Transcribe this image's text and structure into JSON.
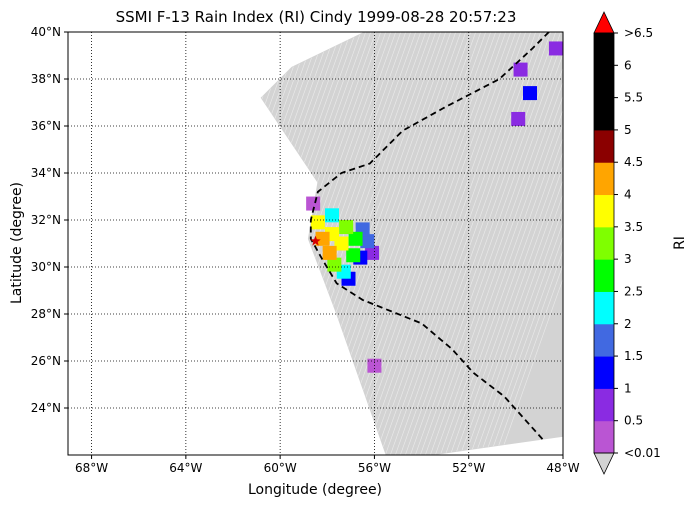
{
  "chart_data": {
    "type": "heatmap",
    "title": "SSMI F-13 Rain Index (RI) Cindy 1999-08-28 20:57:23",
    "xlabel": "Longitude (degree)",
    "ylabel": "Latitude (degree)",
    "xlim": [
      -69,
      -48
    ],
    "ylim": [
      22,
      40
    ],
    "x_ticks": [
      {
        "value": -68,
        "label": "68°W"
      },
      {
        "value": -64,
        "label": "64°W"
      },
      {
        "value": -60,
        "label": "60°W"
      },
      {
        "value": -56,
        "label": "56°W"
      },
      {
        "value": -52,
        "label": "52°W"
      },
      {
        "value": -48,
        "label": "48°W"
      }
    ],
    "y_ticks": [
      {
        "value": 24,
        "label": "24°N"
      },
      {
        "value": 26,
        "label": "26°N"
      },
      {
        "value": 28,
        "label": "28°N"
      },
      {
        "value": 30,
        "label": "30°N"
      },
      {
        "value": 32,
        "label": "32°N"
      },
      {
        "value": 34,
        "label": "34°N"
      },
      {
        "value": 36,
        "label": "36°N"
      },
      {
        "value": 38,
        "label": "38°N"
      },
      {
        "value": 40,
        "label": "40°N"
      }
    ],
    "grid": true,
    "swath_color": "#d3d3d3",
    "swath_boundary": [
      [
        -56.4,
        40
      ],
      [
        -48,
        40
      ],
      [
        -48,
        22.8
      ],
      [
        -53.6,
        22
      ],
      [
        -55.5,
        22
      ],
      [
        -57.6,
        28
      ],
      [
        -58.8,
        31.2
      ],
      [
        -58.4,
        33.6
      ],
      [
        -60.8,
        37.2
      ],
      [
        -59.5,
        38.5
      ]
    ],
    "rain_cells": [
      {
        "lon": -58.2,
        "lat": 31.2,
        "ri": 4
      },
      {
        "lon": -57.9,
        "lat": 30.6,
        "ri": 4
      },
      {
        "lon": -57.8,
        "lat": 31.4,
        "ri": 3.8
      },
      {
        "lon": -57.4,
        "lat": 31.0,
        "ri": 3.5
      },
      {
        "lon": -58.4,
        "lat": 31.9,
        "ri": 3.5
      },
      {
        "lon": -57.2,
        "lat": 31.7,
        "ri": 3.2
      },
      {
        "lon": -57.7,
        "lat": 30.1,
        "ri": 3.2
      },
      {
        "lon": -56.8,
        "lat": 31.2,
        "ri": 2.8
      },
      {
        "lon": -56.9,
        "lat": 30.5,
        "ri": 2.5
      },
      {
        "lon": -57.3,
        "lat": 29.8,
        "ri": 2.4
      },
      {
        "lon": -57.8,
        "lat": 32.2,
        "ri": 2.2
      },
      {
        "lon": -56.5,
        "lat": 31.6,
        "ri": 1.8
      },
      {
        "lon": -56.3,
        "lat": 31.1,
        "ri": 1.6
      },
      {
        "lon": -56.6,
        "lat": 30.4,
        "ri": 1.2
      },
      {
        "lon": -57.1,
        "lat": 29.5,
        "ri": 1.0
      },
      {
        "lon": -56.1,
        "lat": 30.6,
        "ri": 0.5
      },
      {
        "lon": -58.6,
        "lat": 32.7,
        "ri": 0.4
      },
      {
        "lon": -49.8,
        "lat": 38.4,
        "ri": 0.5
      },
      {
        "lon": -49.4,
        "lat": 37.4,
        "ri": 1.0
      },
      {
        "lon": -49.9,
        "lat": 36.3,
        "ri": 0.8
      },
      {
        "lon": -48.3,
        "lat": 39.3,
        "ri": 0.5
      },
      {
        "lon": -56.0,
        "lat": 25.8,
        "ri": 0.4
      }
    ],
    "track": [
      [
        -48.6,
        40
      ],
      [
        -49.3,
        39.3
      ],
      [
        -50.7,
        38
      ],
      [
        -53,
        36.8
      ],
      [
        -54.8,
        35.8
      ],
      [
        -55.4,
        35.2
      ],
      [
        -56.2,
        34.4
      ],
      [
        -57.4,
        34
      ],
      [
        -58.4,
        33.2
      ],
      [
        -58.7,
        32
      ],
      [
        -58.7,
        31.2
      ],
      [
        -58.2,
        30.3
      ],
      [
        -57.6,
        29.3
      ],
      [
        -56.5,
        28.6
      ],
      [
        -54,
        27.6
      ],
      [
        -52.7,
        26.5
      ],
      [
        -51.8,
        25.5
      ],
      [
        -50.5,
        24.5
      ],
      [
        -48.8,
        22.6
      ]
    ],
    "storm_center": {
      "lon": -58.5,
      "lat": 31.1,
      "color": "#d40000"
    },
    "colorbar": {
      "label": "RI",
      "labels": [
        "<0.01",
        "0.5",
        "1",
        "1.5",
        "2",
        "2.5",
        "3",
        "3.5",
        "4",
        "4.5",
        "5",
        "5.5",
        "6",
        ">6.5"
      ],
      "colors": [
        "#ba55d3",
        "#8a2be2",
        "#0000ff",
        "#4169e1",
        "#00ffff",
        "#00ff00",
        "#7fff00",
        "#ffff00",
        "#ffa500",
        "#8b0000",
        "#000000",
        "#000000",
        "#000000"
      ],
      "under_color": "#d3d3d3",
      "over_color": "#ff0000"
    }
  }
}
